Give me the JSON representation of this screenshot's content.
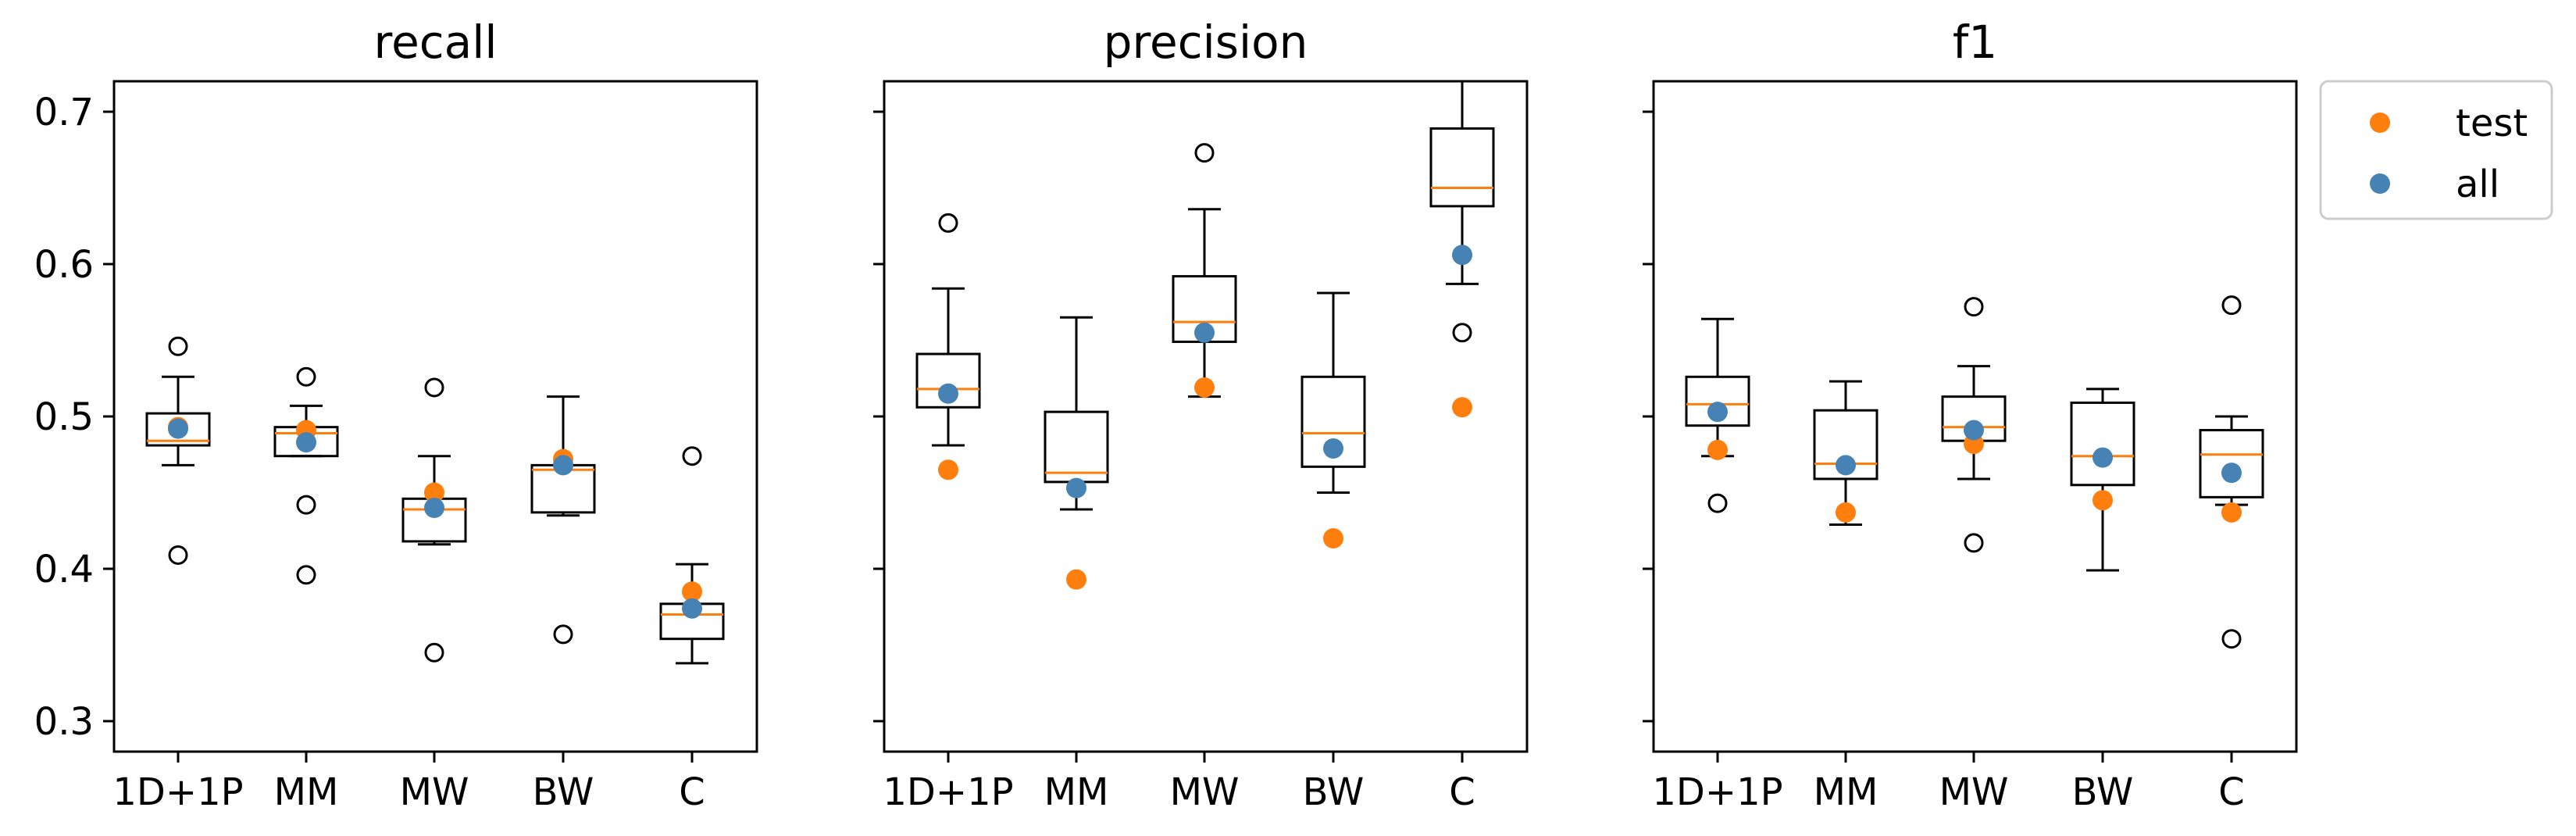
{
  "colors": {
    "test": "#ff7f0e",
    "all": "#4682b4",
    "median": "#ff7f0e",
    "box": "#000000"
  },
  "chart_data": {
    "type": "box",
    "shared_y": true,
    "categories": [
      "1D+1P",
      "MM",
      "MW",
      "BW",
      "C"
    ],
    "ylim": [
      0.28,
      0.72
    ],
    "yticks": [
      0.3,
      0.4,
      0.5,
      0.6,
      0.7
    ],
    "ytick_labels": [
      "0.3",
      "0.4",
      "0.5",
      "0.6",
      "0.7"
    ],
    "legend": {
      "position": "outside-top-right",
      "entries": [
        {
          "name": "test",
          "series": "test"
        },
        {
          "name": "all",
          "series": "all"
        }
      ]
    },
    "panels": [
      {
        "title": "recall",
        "boxes": [
          {
            "category": "1D+1P",
            "whislo": 0.468,
            "q1": 0.481,
            "med": 0.484,
            "q3": 0.502,
            "whishi": 0.526,
            "fliers": [
              0.546,
              0.409
            ]
          },
          {
            "category": "MM",
            "whislo": 0.474,
            "q1": 0.474,
            "med": 0.489,
            "q3": 0.493,
            "whishi": 0.507,
            "fliers": [
              0.526,
              0.442,
              0.396
            ]
          },
          {
            "category": "MW",
            "whislo": 0.416,
            "q1": 0.418,
            "med": 0.439,
            "q3": 0.446,
            "whishi": 0.474,
            "fliers": [
              0.519,
              0.345
            ]
          },
          {
            "category": "BW",
            "whislo": 0.435,
            "q1": 0.437,
            "med": 0.465,
            "q3": 0.468,
            "whishi": 0.513,
            "fliers": [
              0.357
            ]
          },
          {
            "category": "C",
            "whislo": 0.338,
            "q1": 0.354,
            "med": 0.37,
            "q3": 0.377,
            "whishi": 0.403,
            "fliers": [
              0.474
            ]
          }
        ],
        "test": [
          0.493,
          0.491,
          0.45,
          0.472,
          0.385
        ],
        "all": [
          0.492,
          0.483,
          0.44,
          0.468,
          0.374
        ]
      },
      {
        "title": "precision",
        "boxes": [
          {
            "category": "1D+1P",
            "whislo": 0.481,
            "q1": 0.506,
            "med": 0.518,
            "q3": 0.541,
            "whishi": 0.584,
            "fliers": [
              0.627
            ]
          },
          {
            "category": "MM",
            "whislo": 0.439,
            "q1": 0.457,
            "med": 0.463,
            "q3": 0.503,
            "whishi": 0.565,
            "fliers": []
          },
          {
            "category": "MW",
            "whislo": 0.513,
            "q1": 0.549,
            "med": 0.562,
            "q3": 0.592,
            "whishi": 0.636,
            "fliers": [
              0.673
            ]
          },
          {
            "category": "BW",
            "whislo": 0.45,
            "q1": 0.467,
            "med": 0.489,
            "q3": 0.526,
            "whishi": 0.581,
            "fliers": []
          },
          {
            "category": "C",
            "whislo": 0.587,
            "q1": 0.638,
            "med": 0.65,
            "q3": 0.689,
            "whishi": 0.73,
            "fliers": [
              0.555
            ]
          }
        ],
        "test": [
          0.465,
          0.393,
          0.519,
          0.42,
          0.506
        ],
        "all": [
          0.515,
          0.453,
          0.555,
          0.479,
          0.606
        ]
      },
      {
        "title": "f1",
        "boxes": [
          {
            "category": "1D+1P",
            "whislo": 0.474,
            "q1": 0.494,
            "med": 0.508,
            "q3": 0.526,
            "whishi": 0.564,
            "fliers": [
              0.443
            ]
          },
          {
            "category": "MM",
            "whislo": 0.429,
            "q1": 0.459,
            "med": 0.469,
            "q3": 0.504,
            "whishi": 0.523,
            "fliers": []
          },
          {
            "category": "MW",
            "whislo": 0.459,
            "q1": 0.484,
            "med": 0.493,
            "q3": 0.513,
            "whishi": 0.533,
            "fliers": [
              0.572,
              0.417
            ]
          },
          {
            "category": "BW",
            "whislo": 0.399,
            "q1": 0.455,
            "med": 0.474,
            "q3": 0.509,
            "whishi": 0.518,
            "fliers": []
          },
          {
            "category": "C",
            "whislo": 0.442,
            "q1": 0.447,
            "med": 0.475,
            "q3": 0.491,
            "whishi": 0.5,
            "fliers": [
              0.573,
              0.354
            ]
          }
        ],
        "test": [
          0.478,
          0.437,
          0.482,
          0.445,
          0.437
        ],
        "all": [
          0.503,
          0.468,
          0.491,
          0.473,
          0.463
        ]
      }
    ]
  }
}
